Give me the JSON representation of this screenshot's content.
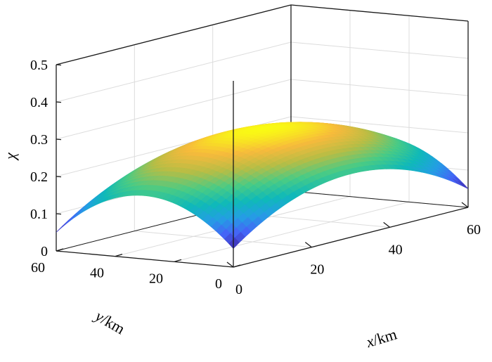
{
  "chart_data": {
    "type": "surface3d",
    "title": "",
    "zlabel": "χ",
    "xlabel": {
      "var": "x",
      "unit": "/km"
    },
    "ylabel": {
      "var": "y",
      "unit": "/km"
    },
    "xlim": [
      0,
      60
    ],
    "ylim": [
      0,
      60
    ],
    "zlim": [
      0,
      0.5
    ],
    "x_ticks": [
      "0",
      "20",
      "40",
      "60"
    ],
    "y_ticks": [
      "0",
      "20",
      "40",
      "60"
    ],
    "z_ticks": [
      "0",
      "0.1",
      "0.2",
      "0.3",
      "0.4",
      "0.5"
    ],
    "grid": true,
    "colormap": "parula-like (blue → green → yellow)",
    "surface": {
      "description": "dome-shaped surface, maximum at center",
      "center": [
        30,
        30
      ],
      "peak_value": 0.27,
      "edge_midpoint_value": 0.17,
      "corner_value": 0.05
    }
  }
}
